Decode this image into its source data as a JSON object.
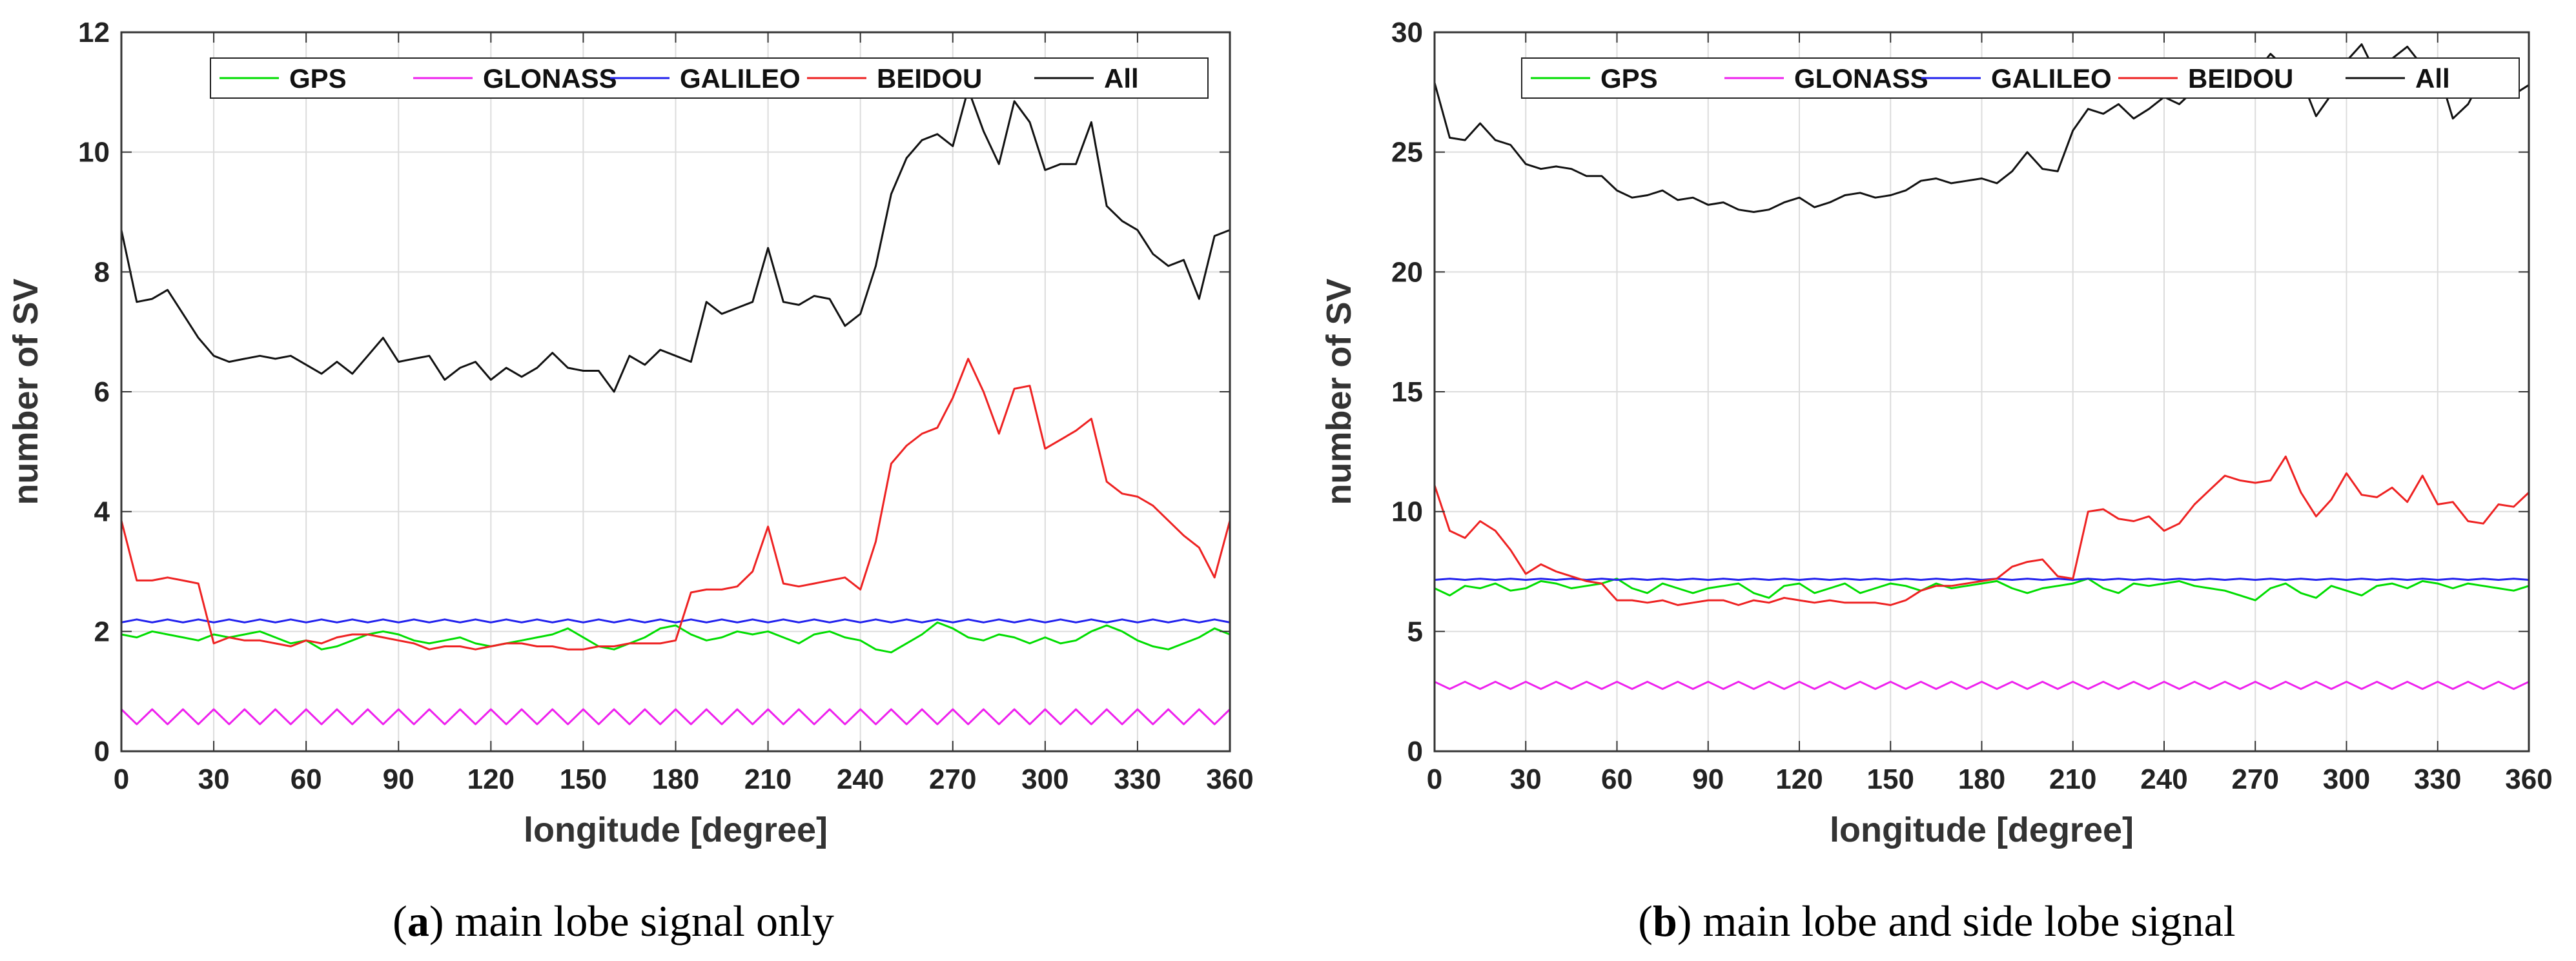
{
  "chart_data": [
    {
      "type": "line",
      "caption_letter": "a",
      "caption_text": "main lobe signal only",
      "xlabel": "longitude [degree]",
      "ylabel": "number of SV",
      "xlim": [
        0,
        360
      ],
      "ylim": [
        0,
        12
      ],
      "xticks": [
        0,
        30,
        60,
        90,
        120,
        150,
        180,
        210,
        240,
        270,
        300,
        330,
        360
      ],
      "yticks": [
        0,
        2,
        4,
        6,
        8,
        10,
        12
      ],
      "grid": true,
      "legend_position": "top-right",
      "x": [
        0,
        5,
        10,
        15,
        20,
        25,
        30,
        35,
        40,
        45,
        50,
        55,
        60,
        65,
        70,
        75,
        80,
        85,
        90,
        95,
        100,
        105,
        110,
        115,
        120,
        125,
        130,
        135,
        140,
        145,
        150,
        155,
        160,
        165,
        170,
        175,
        180,
        185,
        190,
        195,
        200,
        205,
        210,
        215,
        220,
        225,
        230,
        235,
        240,
        245,
        250,
        255,
        260,
        265,
        270,
        275,
        280,
        285,
        290,
        295,
        300,
        305,
        310,
        315,
        320,
        325,
        330,
        335,
        340,
        345,
        350,
        355,
        360
      ],
      "series": [
        {
          "name": "GPS",
          "color": "#00dd00",
          "values": [
            1.95,
            1.9,
            2.0,
            1.95,
            1.9,
            1.85,
            1.95,
            1.9,
            1.95,
            2.0,
            1.9,
            1.8,
            1.85,
            1.7,
            1.75,
            1.85,
            1.95,
            2.0,
            1.95,
            1.85,
            1.8,
            1.85,
            1.9,
            1.8,
            1.75,
            1.8,
            1.85,
            1.9,
            1.95,
            2.05,
            1.9,
            1.75,
            1.7,
            1.8,
            1.9,
            2.05,
            2.1,
            1.95,
            1.85,
            1.9,
            2.0,
            1.95,
            2.0,
            1.9,
            1.8,
            1.95,
            2.0,
            1.9,
            1.85,
            1.7,
            1.65,
            1.8,
            1.95,
            2.15,
            2.05,
            1.9,
            1.85,
            1.95,
            1.9,
            1.8,
            1.9,
            1.8,
            1.85,
            2.0,
            2.1,
            2.0,
            1.85,
            1.75,
            1.7,
            1.8,
            1.9,
            2.05,
            1.95
          ]
        },
        {
          "name": "GLONASS",
          "color": "#ee22ee",
          "values": [
            0.7,
            0.45,
            0.7,
            0.45,
            0.7,
            0.45,
            0.7,
            0.45,
            0.7,
            0.45,
            0.7,
            0.45,
            0.7,
            0.45,
            0.7,
            0.45,
            0.7,
            0.45,
            0.7,
            0.45,
            0.7,
            0.45,
            0.7,
            0.45,
            0.7,
            0.45,
            0.7,
            0.45,
            0.7,
            0.45,
            0.7,
            0.45,
            0.7,
            0.45,
            0.7,
            0.45,
            0.7,
            0.45,
            0.7,
            0.45,
            0.7,
            0.45,
            0.7,
            0.45,
            0.7,
            0.45,
            0.7,
            0.45,
            0.7,
            0.45,
            0.7,
            0.45,
            0.7,
            0.45,
            0.7,
            0.45,
            0.7,
            0.45,
            0.7,
            0.45,
            0.7,
            0.45,
            0.7,
            0.45,
            0.7,
            0.45,
            0.7,
            0.45,
            0.7,
            0.45,
            0.7,
            0.45,
            0.7
          ]
        },
        {
          "name": "GALILEO",
          "color": "#2222ee",
          "values": [
            2.15,
            2.2,
            2.15,
            2.2,
            2.15,
            2.2,
            2.15,
            2.2,
            2.15,
            2.2,
            2.15,
            2.2,
            2.15,
            2.2,
            2.15,
            2.2,
            2.15,
            2.2,
            2.15,
            2.2,
            2.15,
            2.2,
            2.15,
            2.2,
            2.15,
            2.2,
            2.15,
            2.2,
            2.15,
            2.2,
            2.15,
            2.2,
            2.15,
            2.2,
            2.15,
            2.2,
            2.15,
            2.2,
            2.15,
            2.2,
            2.15,
            2.2,
            2.15,
            2.2,
            2.15,
            2.2,
            2.15,
            2.2,
            2.15,
            2.2,
            2.15,
            2.2,
            2.15,
            2.2,
            2.15,
            2.2,
            2.15,
            2.2,
            2.15,
            2.2,
            2.15,
            2.2,
            2.15,
            2.2,
            2.15,
            2.2,
            2.15,
            2.2,
            2.15,
            2.2,
            2.15,
            2.2,
            2.15
          ]
        },
        {
          "name": "BEIDOU",
          "color": "#ee2222",
          "values": [
            3.85,
            2.85,
            2.85,
            2.9,
            2.85,
            2.8,
            1.8,
            1.9,
            1.85,
            1.85,
            1.8,
            1.75,
            1.85,
            1.8,
            1.9,
            1.95,
            1.95,
            1.9,
            1.85,
            1.8,
            1.7,
            1.75,
            1.75,
            1.7,
            1.75,
            1.8,
            1.8,
            1.75,
            1.75,
            1.7,
            1.7,
            1.75,
            1.75,
            1.8,
            1.8,
            1.8,
            1.85,
            2.65,
            2.7,
            2.7,
            2.75,
            3.0,
            3.75,
            2.8,
            2.75,
            2.8,
            2.85,
            2.9,
            2.7,
            3.5,
            4.8,
            5.1,
            5.3,
            5.4,
            5.9,
            6.55,
            6.0,
            5.3,
            6.05,
            6.1,
            5.05,
            5.2,
            5.35,
            5.55,
            4.5,
            4.3,
            4.25,
            4.1,
            3.85,
            3.6,
            3.4,
            2.9,
            3.85
          ]
        },
        {
          "name": "All",
          "color": "#111111",
          "values": [
            8.7,
            7.5,
            7.55,
            7.7,
            7.3,
            6.9,
            6.6,
            6.5,
            6.55,
            6.6,
            6.55,
            6.6,
            6.45,
            6.3,
            6.5,
            6.3,
            6.6,
            6.9,
            6.5,
            6.55,
            6.6,
            6.2,
            6.4,
            6.5,
            6.2,
            6.4,
            6.25,
            6.4,
            6.65,
            6.4,
            6.35,
            6.35,
            6.0,
            6.6,
            6.45,
            6.7,
            6.6,
            6.5,
            7.5,
            7.3,
            7.4,
            7.5,
            8.4,
            7.5,
            7.45,
            7.6,
            7.55,
            7.1,
            7.3,
            8.1,
            9.3,
            9.9,
            10.2,
            10.3,
            10.1,
            11.05,
            10.35,
            9.8,
            10.85,
            10.5,
            9.7,
            9.8,
            9.8,
            10.5,
            9.1,
            8.85,
            8.7,
            8.3,
            8.1,
            8.2,
            7.55,
            8.6,
            8.7
          ]
        }
      ]
    },
    {
      "type": "line",
      "caption_letter": "b",
      "caption_text": "main lobe and side lobe signal",
      "xlabel": "longitude [degree]",
      "ylabel": "number of SV",
      "xlim": [
        0,
        360
      ],
      "ylim": [
        0,
        30
      ],
      "xticks": [
        0,
        30,
        60,
        90,
        120,
        150,
        180,
        210,
        240,
        270,
        300,
        330,
        360
      ],
      "yticks": [
        0,
        5,
        10,
        15,
        20,
        25,
        30
      ],
      "grid": true,
      "legend_position": "top-right",
      "x": [
        0,
        5,
        10,
        15,
        20,
        25,
        30,
        35,
        40,
        45,
        50,
        55,
        60,
        65,
        70,
        75,
        80,
        85,
        90,
        95,
        100,
        105,
        110,
        115,
        120,
        125,
        130,
        135,
        140,
        145,
        150,
        155,
        160,
        165,
        170,
        175,
        180,
        185,
        190,
        195,
        200,
        205,
        210,
        215,
        220,
        225,
        230,
        235,
        240,
        245,
        250,
        255,
        260,
        265,
        270,
        275,
        280,
        285,
        290,
        295,
        300,
        305,
        310,
        315,
        320,
        325,
        330,
        335,
        340,
        345,
        350,
        355,
        360
      ],
      "series": [
        {
          "name": "GPS",
          "color": "#00dd00",
          "values": [
            6.8,
            6.5,
            6.9,
            6.8,
            7.0,
            6.7,
            6.8,
            7.1,
            7.0,
            6.8,
            6.9,
            7.0,
            7.2,
            6.8,
            6.6,
            7.0,
            6.8,
            6.6,
            6.8,
            6.9,
            7.0,
            6.6,
            6.4,
            6.9,
            7.0,
            6.6,
            6.8,
            7.0,
            6.6,
            6.8,
            7.0,
            6.9,
            6.7,
            7.0,
            6.8,
            6.9,
            7.0,
            7.1,
            6.8,
            6.6,
            6.8,
            6.9,
            7.0,
            7.2,
            6.8,
            6.6,
            7.0,
            6.9,
            7.0,
            7.1,
            6.9,
            6.8,
            6.7,
            6.5,
            6.3,
            6.8,
            7.0,
            6.6,
            6.4,
            6.9,
            6.7,
            6.5,
            6.9,
            7.0,
            6.8,
            7.1,
            7.0,
            6.8,
            7.0,
            6.9,
            6.8,
            6.7,
            6.9
          ]
        },
        {
          "name": "GLONASS",
          "color": "#ee22ee",
          "values": [
            2.9,
            2.6,
            2.9,
            2.6,
            2.9,
            2.6,
            2.9,
            2.6,
            2.9,
            2.6,
            2.9,
            2.6,
            2.9,
            2.6,
            2.9,
            2.6,
            2.9,
            2.6,
            2.9,
            2.6,
            2.9,
            2.6,
            2.9,
            2.6,
            2.9,
            2.6,
            2.9,
            2.6,
            2.9,
            2.6,
            2.9,
            2.6,
            2.9,
            2.6,
            2.9,
            2.6,
            2.9,
            2.6,
            2.9,
            2.6,
            2.9,
            2.6,
            2.9,
            2.6,
            2.9,
            2.6,
            2.9,
            2.6,
            2.9,
            2.6,
            2.9,
            2.6,
            2.9,
            2.6,
            2.9,
            2.6,
            2.9,
            2.6,
            2.9,
            2.6,
            2.9,
            2.6,
            2.9,
            2.6,
            2.9,
            2.6,
            2.9,
            2.6,
            2.9,
            2.6,
            2.9,
            2.6,
            2.9
          ]
        },
        {
          "name": "GALILEO",
          "color": "#2222ee",
          "values": [
            7.15,
            7.2,
            7.15,
            7.2,
            7.15,
            7.2,
            7.15,
            7.2,
            7.15,
            7.2,
            7.15,
            7.2,
            7.15,
            7.2,
            7.15,
            7.2,
            7.15,
            7.2,
            7.15,
            7.2,
            7.15,
            7.2,
            7.15,
            7.2,
            7.15,
            7.2,
            7.15,
            7.2,
            7.15,
            7.2,
            7.15,
            7.2,
            7.15,
            7.2,
            7.15,
            7.2,
            7.15,
            7.2,
            7.15,
            7.2,
            7.15,
            7.2,
            7.15,
            7.2,
            7.15,
            7.2,
            7.15,
            7.2,
            7.15,
            7.2,
            7.15,
            7.2,
            7.15,
            7.2,
            7.15,
            7.2,
            7.15,
            7.2,
            7.15,
            7.2,
            7.15,
            7.2,
            7.15,
            7.2,
            7.15,
            7.2,
            7.15,
            7.2,
            7.15,
            7.2,
            7.15,
            7.2,
            7.15
          ]
        },
        {
          "name": "BEIDOU",
          "color": "#ee2222",
          "values": [
            11.1,
            9.2,
            8.9,
            9.6,
            9.2,
            8.4,
            7.4,
            7.8,
            7.5,
            7.3,
            7.1,
            7.0,
            6.3,
            6.3,
            6.2,
            6.3,
            6.1,
            6.2,
            6.3,
            6.3,
            6.1,
            6.3,
            6.2,
            6.4,
            6.3,
            6.2,
            6.3,
            6.2,
            6.2,
            6.2,
            6.1,
            6.3,
            6.7,
            6.9,
            6.9,
            7.0,
            7.1,
            7.2,
            7.7,
            7.9,
            8.0,
            7.3,
            7.2,
            10.0,
            10.1,
            9.7,
            9.6,
            9.8,
            9.2,
            9.5,
            10.3,
            10.9,
            11.5,
            11.3,
            11.2,
            11.3,
            12.3,
            10.8,
            9.8,
            10.5,
            11.6,
            10.7,
            10.6,
            11.0,
            10.4,
            11.5,
            10.3,
            10.4,
            9.6,
            9.5,
            10.3,
            10.2,
            10.8
          ]
        },
        {
          "name": "All",
          "color": "#111111",
          "values": [
            27.9,
            25.6,
            25.5,
            26.2,
            25.5,
            25.3,
            24.5,
            24.3,
            24.4,
            24.3,
            24.0,
            24.0,
            23.4,
            23.1,
            23.2,
            23.4,
            23.0,
            23.1,
            22.8,
            22.9,
            22.6,
            22.5,
            22.6,
            22.9,
            23.1,
            22.7,
            22.9,
            23.2,
            23.3,
            23.1,
            23.2,
            23.4,
            23.8,
            23.9,
            23.7,
            23.8,
            23.9,
            23.7,
            24.2,
            25.0,
            24.3,
            24.2,
            25.9,
            26.8,
            26.6,
            27.0,
            26.4,
            26.8,
            27.3,
            27.0,
            27.6,
            28.6,
            28.0,
            28.6,
            28.3,
            29.1,
            28.5,
            28.1,
            26.5,
            27.4,
            28.8,
            29.5,
            28.2,
            28.9,
            29.4,
            28.6,
            28.5,
            26.4,
            27.0,
            28.2,
            27.3,
            27.4,
            27.8
          ]
        }
      ]
    }
  ]
}
